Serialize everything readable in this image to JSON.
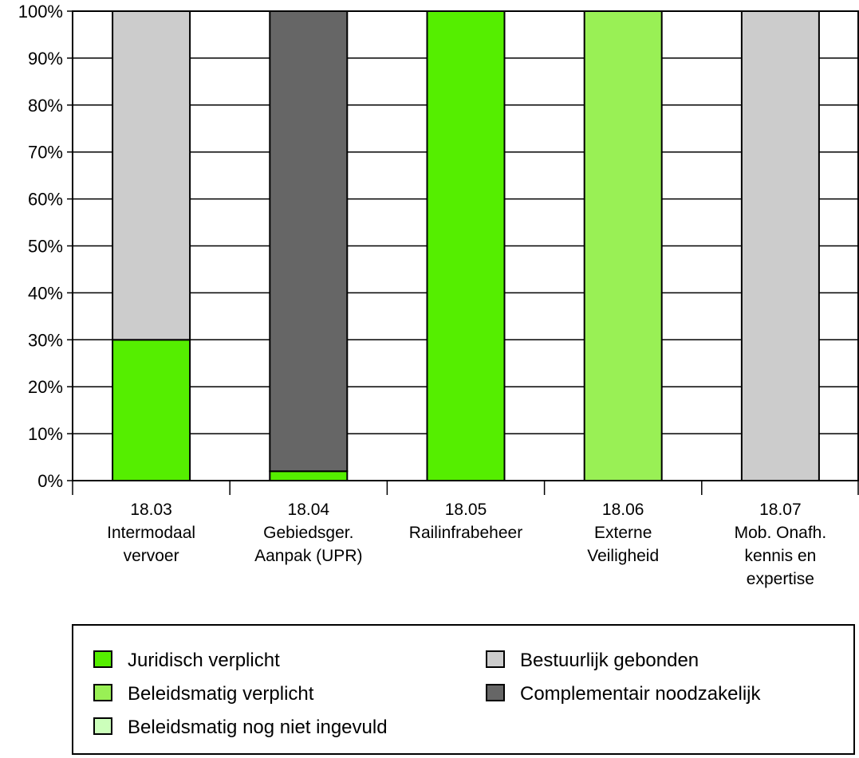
{
  "chart_data": {
    "type": "bar",
    "stacked": true,
    "categories": [
      [
        "18.03",
        "Intermodaal",
        "vervoer"
      ],
      [
        "18.04",
        "Gebiedsger.",
        "Aanpak (UPR)"
      ],
      [
        "18.05",
        "Railinfrabeheer"
      ],
      [
        "18.06",
        "Externe",
        "Veiligheid"
      ],
      [
        "18.07",
        "Mob. Onafh.",
        "kennis en",
        "expertise"
      ]
    ],
    "series": [
      {
        "name": "Juridisch verplicht",
        "color": "#55ee00",
        "values": [
          30,
          2,
          100,
          0,
          0
        ]
      },
      {
        "name": "Beleidsmatig verplicht",
        "color": "#99f055",
        "values": [
          0,
          0,
          0,
          100,
          0
        ]
      },
      {
        "name": "Beleidsmatig nog niet ingevuld",
        "color": "#ccffbb",
        "values": [
          0,
          0,
          0,
          0,
          0
        ]
      },
      {
        "name": "Bestuurlijk gebonden",
        "color": "#cccccc",
        "values": [
          70,
          0,
          0,
          0,
          100
        ]
      },
      {
        "name": "Complementair noodzakelijk",
        "color": "#666666",
        "values": [
          0,
          98,
          0,
          0,
          0
        ]
      }
    ],
    "yticks": [
      "0%",
      "10%",
      "20%",
      "30%",
      "40%",
      "50%",
      "60%",
      "70%",
      "80%",
      "90%",
      "100%"
    ],
    "ylim": [
      0,
      100
    ],
    "grid": true,
    "legend_position": "bottom",
    "legend_order": [
      0,
      3,
      1,
      4,
      2
    ]
  }
}
